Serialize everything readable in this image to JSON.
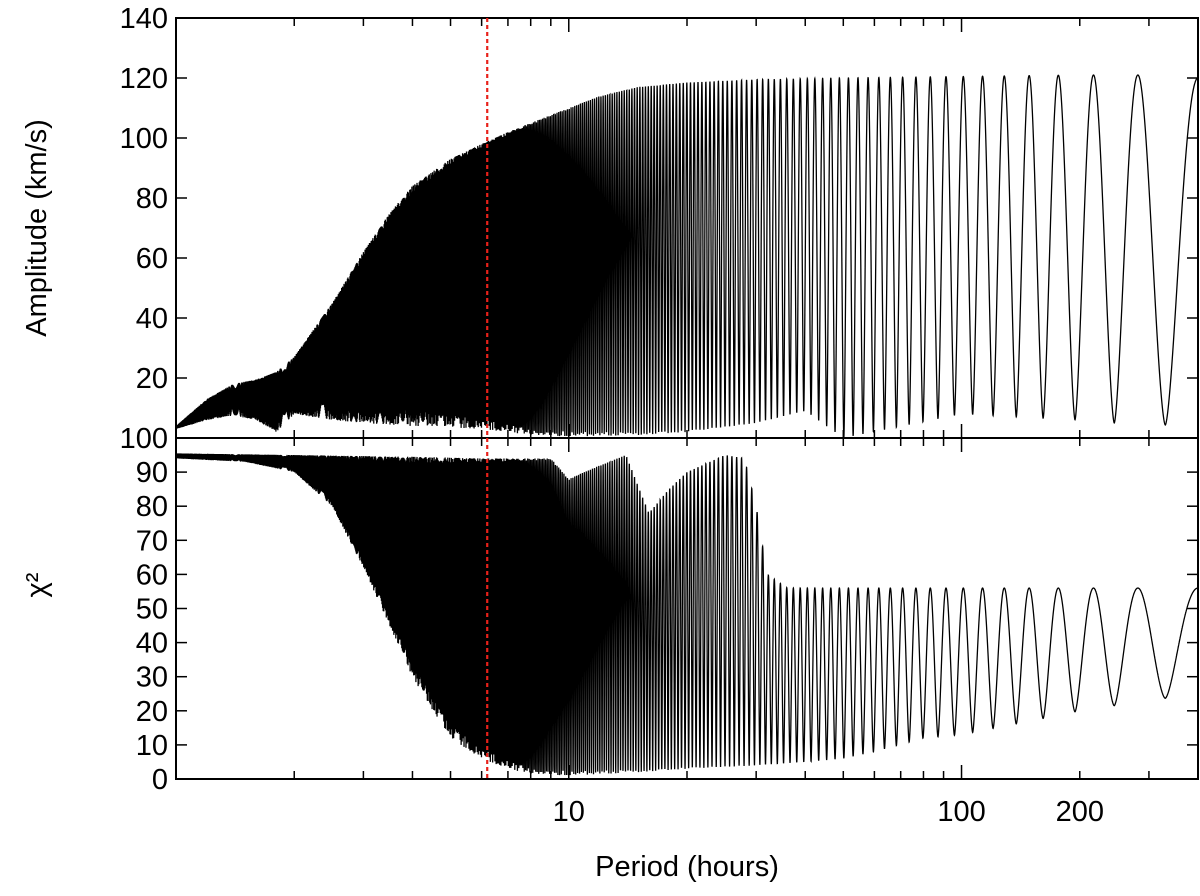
{
  "chart_data": [
    {
      "type": "line",
      "panel": "top",
      "xlabel": "",
      "ylabel": "Amplitude (km/s)",
      "xscale": "log",
      "xlim": [
        1,
        400
      ],
      "ylim": [
        0,
        140
      ],
      "yticks": [
        20,
        40,
        60,
        80,
        100,
        120,
        140
      ],
      "xticks": [],
      "grid": false,
      "series": [
        {
          "style": "dense-oscillation",
          "envelope_upper": [
            [
              1,
              4
            ],
            [
              1.2,
              13
            ],
            [
              1.4,
              18
            ],
            [
              1.6,
              19.5
            ],
            [
              1.8,
              22
            ],
            [
              2,
              27
            ],
            [
              2.5,
              45
            ],
            [
              3,
              62
            ],
            [
              3.5,
              75
            ],
            [
              4,
              84
            ],
            [
              5,
              93
            ],
            [
              6,
              98
            ],
            [
              7,
              102
            ],
            [
              8,
              105
            ],
            [
              10,
              110
            ],
            [
              12,
              114
            ],
            [
              15,
              117
            ],
            [
              20,
              118.5
            ],
            [
              30,
              119.5
            ],
            [
              50,
              120
            ],
            [
              100,
              120.5
            ],
            [
              200,
              121
            ],
            [
              300,
              121
            ],
            [
              400,
              120
            ]
          ],
          "envelope_lower": [
            [
              1,
              3
            ],
            [
              1.2,
              6
            ],
            [
              1.4,
              7.5
            ],
            [
              1.6,
              6
            ],
            [
              1.8,
              2
            ],
            [
              2,
              8
            ],
            [
              2.5,
              6
            ],
            [
              3,
              5
            ],
            [
              4,
              4
            ],
            [
              5,
              3.5
            ],
            [
              6,
              3
            ],
            [
              7,
              2
            ],
            [
              8,
              1
            ],
            [
              10,
              0.5
            ],
            [
              15,
              1
            ],
            [
              20,
              2
            ],
            [
              30,
              5
            ],
            [
              40,
              9
            ],
            [
              50,
              0
            ],
            [
              100,
              8
            ],
            [
              200,
              6
            ],
            [
              300,
              4
            ],
            [
              400,
              5
            ]
          ]
        }
      ]
    },
    {
      "type": "line",
      "panel": "bottom",
      "xlabel": "Period (hours)",
      "ylabel": "χ²",
      "xscale": "log",
      "xlim": [
        1,
        400
      ],
      "ylim": [
        0,
        100
      ],
      "yticks": [
        0,
        10,
        20,
        30,
        40,
        50,
        60,
        70,
        80,
        90,
        100
      ],
      "xticks": [
        {
          "value": 10,
          "label": "10"
        },
        {
          "value": 100,
          "label": "100"
        },
        {
          "value": 200,
          "label": "200"
        }
      ],
      "grid": false,
      "marker_line": {
        "x": 6.2,
        "color": "#e8211a",
        "style": "dotted"
      },
      "series": [
        {
          "style": "dense-oscillation",
          "envelope_upper": [
            [
              1,
              95.5
            ],
            [
              2,
              95
            ],
            [
              4,
              94.5
            ],
            [
              6,
              94
            ],
            [
              7,
              94
            ],
            [
              8,
              94
            ],
            [
              9,
              94
            ],
            [
              10,
              88
            ],
            [
              12,
              92
            ],
            [
              14,
              95
            ],
            [
              15,
              86
            ],
            [
              16,
              78
            ],
            [
              18,
              85
            ],
            [
              20,
              90
            ],
            [
              25,
              95
            ],
            [
              28,
              94
            ],
            [
              30,
              80
            ],
            [
              32,
              60
            ],
            [
              36,
              56
            ],
            [
              100,
              56
            ],
            [
              200,
              56
            ],
            [
              300,
              56
            ],
            [
              400,
              56
            ]
          ],
          "envelope_lower": [
            [
              1,
              94
            ],
            [
              1.5,
              93
            ],
            [
              2,
              90
            ],
            [
              2.5,
              80
            ],
            [
              3,
              62
            ],
            [
              3.5,
              45
            ],
            [
              4,
              30
            ],
            [
              4.5,
              20
            ],
            [
              5,
              12
            ],
            [
              6,
              6
            ],
            [
              7,
              3
            ],
            [
              8,
              1.5
            ],
            [
              10,
              1
            ],
            [
              15,
              2
            ],
            [
              20,
              3
            ],
            [
              30,
              4
            ],
            [
              40,
              5
            ],
            [
              50,
              6
            ],
            [
              60,
              8
            ],
            [
              80,
              12
            ],
            [
              100,
              13
            ],
            [
              150,
              17
            ],
            [
              200,
              20
            ],
            [
              300,
              23
            ],
            [
              400,
              25
            ]
          ]
        }
      ]
    }
  ],
  "colors": {
    "trace": "#000000",
    "marker": "#e8211a",
    "axes": "#000000",
    "background": "#ffffff"
  }
}
